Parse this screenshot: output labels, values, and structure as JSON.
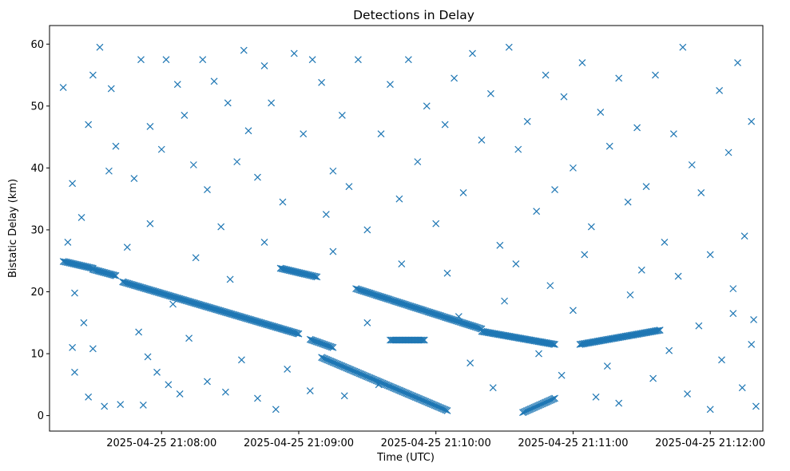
{
  "chart_data": {
    "type": "scatter",
    "title": "Detections in Delay",
    "xlabel": "Time (UTC)",
    "ylabel": "Bistatic Delay (km)",
    "marker": "x",
    "color": "#1f77b4",
    "grid": false,
    "x_ticks": [
      "2025-04-25 21:08:00",
      "2025-04-25 21:09:00",
      "2025-04-25 21:10:00",
      "2025-04-25 21:11:00",
      "2025-04-25 21:12:00"
    ],
    "y_ticks": [
      0,
      10,
      20,
      30,
      40,
      50,
      60
    ],
    "xlim": [
      "2025-04-25 21:07:11",
      "2025-04-25 21:12:23"
    ],
    "ylim": [
      -2.5,
      63
    ],
    "tracks": [
      {
        "x_start": "2025-04-25 21:07:17",
        "x_end": "2025-04-25 21:07:30",
        "y_start": 24.9,
        "y_end": 23.8
      },
      {
        "x_start": "2025-04-25 21:07:30",
        "x_end": "2025-04-25 21:07:40",
        "y_start": 23.6,
        "y_end": 22.6
      },
      {
        "x_start": "2025-04-25 21:07:43",
        "x_end": "2025-04-25 21:09:00",
        "y_start": 21.6,
        "y_end": 13.2
      },
      {
        "x_start": "2025-04-25 21:08:52",
        "x_end": "2025-04-25 21:09:08",
        "y_start": 23.8,
        "y_end": 22.4
      },
      {
        "x_start": "2025-04-25 21:09:05",
        "x_end": "2025-04-25 21:09:15",
        "y_start": 12.3,
        "y_end": 11.0
      },
      {
        "x_start": "2025-04-25 21:09:10",
        "x_end": "2025-04-25 21:10:05",
        "y_start": 9.4,
        "y_end": 0.8
      },
      {
        "x_start": "2025-04-25 21:09:25",
        "x_end": "2025-04-25 21:10:20",
        "y_start": 20.5,
        "y_end": 14.0
      },
      {
        "x_start": "2025-04-25 21:09:40",
        "x_end": "2025-04-25 21:09:55",
        "y_start": 12.2,
        "y_end": 12.2
      },
      {
        "x_start": "2025-04-25 21:10:20",
        "x_end": "2025-04-25 21:10:52",
        "y_start": 13.6,
        "y_end": 11.5
      },
      {
        "x_start": "2025-04-25 21:10:38",
        "x_end": "2025-04-25 21:10:52",
        "y_start": 0.5,
        "y_end": 2.8
      },
      {
        "x_start": "2025-04-25 21:11:03",
        "x_end": "2025-04-25 21:11:38",
        "y_start": 11.5,
        "y_end": 13.8
      }
    ],
    "points": [
      [
        "2025-04-25 21:07:17",
        53.0
      ],
      [
        "2025-04-25 21:07:19",
        28.0
      ],
      [
        "2025-04-25 21:07:21",
        37.5
      ],
      [
        "2025-04-25 21:07:25",
        32.0
      ],
      [
        "2025-04-25 21:07:28",
        47.0
      ],
      [
        "2025-04-25 21:07:30",
        55.0
      ],
      [
        "2025-04-25 21:07:33",
        59.5
      ],
      [
        "2025-04-25 21:07:38",
        52.8
      ],
      [
        "2025-04-25 21:07:40",
        43.5
      ],
      [
        "2025-04-25 21:07:37",
        39.5
      ],
      [
        "2025-04-25 21:07:22",
        19.8
      ],
      [
        "2025-04-25 21:07:26",
        15.0
      ],
      [
        "2025-04-25 21:07:21",
        11.0
      ],
      [
        "2025-04-25 21:07:22",
        7.0
      ],
      [
        "2025-04-25 21:07:30",
        10.8
      ],
      [
        "2025-04-25 21:07:28",
        3.0
      ],
      [
        "2025-04-25 21:07:35",
        1.5
      ],
      [
        "2025-04-25 21:07:42",
        1.8
      ],
      [
        "2025-04-25 21:07:52",
        1.7
      ],
      [
        "2025-04-25 21:07:50",
        13.5
      ],
      [
        "2025-04-25 21:07:54",
        9.5
      ],
      [
        "2025-04-25 21:07:58",
        7.0
      ],
      [
        "2025-04-25 21:08:03",
        5.0
      ],
      [
        "2025-04-25 21:08:08",
        3.5
      ],
      [
        "2025-04-25 21:07:48",
        38.3
      ],
      [
        "2025-04-25 21:07:51",
        57.5
      ],
      [
        "2025-04-25 21:07:55",
        46.7
      ],
      [
        "2025-04-25 21:08:00",
        43.0
      ],
      [
        "2025-04-25 21:08:02",
        57.5
      ],
      [
        "2025-04-25 21:08:07",
        53.5
      ],
      [
        "2025-04-25 21:08:10",
        48.5
      ],
      [
        "2025-04-25 21:08:14",
        40.5
      ],
      [
        "2025-04-25 21:08:18",
        57.5
      ],
      [
        "2025-04-25 21:08:20",
        36.5
      ],
      [
        "2025-04-25 21:08:23",
        54.0
      ],
      [
        "2025-04-25 21:08:26",
        30.5
      ],
      [
        "2025-04-25 21:08:29",
        50.5
      ],
      [
        "2025-04-25 21:08:33",
        41.0
      ],
      [
        "2025-04-25 21:08:36",
        59.0
      ],
      [
        "2025-04-25 21:08:38",
        46.0
      ],
      [
        "2025-04-25 21:08:42",
        38.5
      ],
      [
        "2025-04-25 21:08:45",
        56.5
      ],
      [
        "2025-04-25 21:08:48",
        50.5
      ],
      [
        "2025-04-25 21:08:53",
        34.5
      ],
      [
        "2025-04-25 21:08:58",
        58.5
      ],
      [
        "2025-04-25 21:09:02",
        45.5
      ],
      [
        "2025-04-25 21:09:06",
        57.5
      ],
      [
        "2025-04-25 21:09:10",
        53.8
      ],
      [
        "2025-04-25 21:09:12",
        32.5
      ],
      [
        "2025-04-25 21:09:15",
        39.5
      ],
      [
        "2025-04-25 21:09:19",
        48.5
      ],
      [
        "2025-04-25 21:09:22",
        37.0
      ],
      [
        "2025-04-25 21:09:26",
        57.5
      ],
      [
        "2025-04-25 21:09:30",
        30.0
      ],
      [
        "2025-04-25 21:09:36",
        45.5
      ],
      [
        "2025-04-25 21:09:40",
        53.5
      ],
      [
        "2025-04-25 21:09:44",
        35.0
      ],
      [
        "2025-04-25 21:09:48",
        57.5
      ],
      [
        "2025-04-25 21:09:52",
        41.0
      ],
      [
        "2025-04-25 21:09:56",
        50.0
      ],
      [
        "2025-04-25 21:10:00",
        31.0
      ],
      [
        "2025-04-25 21:10:04",
        47.0
      ],
      [
        "2025-04-25 21:10:08",
        54.5
      ],
      [
        "2025-04-25 21:10:12",
        36.0
      ],
      [
        "2025-04-25 21:10:16",
        58.5
      ],
      [
        "2025-04-25 21:10:20",
        44.5
      ],
      [
        "2025-04-25 21:10:24",
        52.0
      ],
      [
        "2025-04-25 21:10:28",
        27.5
      ],
      [
        "2025-04-25 21:10:32",
        59.5
      ],
      [
        "2025-04-25 21:10:36",
        43.0
      ],
      [
        "2025-04-25 21:10:40",
        47.5
      ],
      [
        "2025-04-25 21:10:44",
        33.0
      ],
      [
        "2025-04-25 21:10:48",
        55.0
      ],
      [
        "2025-04-25 21:10:52",
        36.5
      ],
      [
        "2025-04-25 21:10:56",
        51.5
      ],
      [
        "2025-04-25 21:11:00",
        40.0
      ],
      [
        "2025-04-25 21:11:04",
        57.0
      ],
      [
        "2025-04-25 21:11:08",
        30.5
      ],
      [
        "2025-04-25 21:11:12",
        49.0
      ],
      [
        "2025-04-25 21:11:16",
        43.5
      ],
      [
        "2025-04-25 21:11:20",
        54.5
      ],
      [
        "2025-04-25 21:11:24",
        34.5
      ],
      [
        "2025-04-25 21:11:28",
        46.5
      ],
      [
        "2025-04-25 21:11:32",
        37.0
      ],
      [
        "2025-04-25 21:11:36",
        55.0
      ],
      [
        "2025-04-25 21:11:40",
        28.0
      ],
      [
        "2025-04-25 21:11:44",
        45.5
      ],
      [
        "2025-04-25 21:11:48",
        59.5
      ],
      [
        "2025-04-25 21:11:52",
        40.5
      ],
      [
        "2025-04-25 21:11:56",
        36.0
      ],
      [
        "2025-04-25 21:12:00",
        26.0
      ],
      [
        "2025-04-25 21:12:04",
        52.5
      ],
      [
        "2025-04-25 21:12:08",
        42.5
      ],
      [
        "2025-04-25 21:12:12",
        57.0
      ],
      [
        "2025-04-25 21:12:15",
        29.0
      ],
      [
        "2025-04-25 21:12:18",
        47.5
      ],
      [
        "2025-04-25 21:08:05",
        18.0
      ],
      [
        "2025-04-25 21:08:12",
        12.5
      ],
      [
        "2025-04-25 21:08:20",
        5.5
      ],
      [
        "2025-04-25 21:08:28",
        3.8
      ],
      [
        "2025-04-25 21:08:35",
        9.0
      ],
      [
        "2025-04-25 21:08:42",
        2.8
      ],
      [
        "2025-04-25 21:08:50",
        1.0
      ],
      [
        "2025-04-25 21:08:55",
        7.5
      ],
      [
        "2025-04-25 21:09:05",
        4.0
      ],
      [
        "2025-04-25 21:09:20",
        3.2
      ],
      [
        "2025-04-25 21:09:30",
        15.0
      ],
      [
        "2025-04-25 21:09:35",
        5.0
      ],
      [
        "2025-04-25 21:10:10",
        16.0
      ],
      [
        "2025-04-25 21:10:15",
        8.5
      ],
      [
        "2025-04-25 21:10:25",
        4.5
      ],
      [
        "2025-04-25 21:10:30",
        18.5
      ],
      [
        "2025-04-25 21:10:45",
        10.0
      ],
      [
        "2025-04-25 21:10:55",
        6.5
      ],
      [
        "2025-04-25 21:11:00",
        17.0
      ],
      [
        "2025-04-25 21:11:10",
        3.0
      ],
      [
        "2025-04-25 21:11:15",
        8.0
      ],
      [
        "2025-04-25 21:11:20",
        2.0
      ],
      [
        "2025-04-25 21:11:25",
        19.5
      ],
      [
        "2025-04-25 21:11:35",
        6.0
      ],
      [
        "2025-04-25 21:11:42",
        10.5
      ],
      [
        "2025-04-25 21:11:50",
        3.5
      ],
      [
        "2025-04-25 21:11:55",
        14.5
      ],
      [
        "2025-04-25 21:12:00",
        1.0
      ],
      [
        "2025-04-25 21:12:05",
        9.0
      ],
      [
        "2025-04-25 21:12:10",
        16.5
      ],
      [
        "2025-04-25 21:12:14",
        4.5
      ],
      [
        "2025-04-25 21:12:18",
        11.5
      ],
      [
        "2025-04-25 21:12:20",
        1.5
      ],
      [
        "2025-04-25 21:12:19",
        15.5
      ],
      [
        "2025-04-25 21:12:10",
        20.5
      ],
      [
        "2025-04-25 21:11:46",
        22.5
      ],
      [
        "2025-04-25 21:08:15",
        25.5
      ],
      [
        "2025-04-25 21:08:30",
        22.0
      ],
      [
        "2025-04-25 21:08:45",
        28.0
      ],
      [
        "2025-04-25 21:09:15",
        26.5
      ],
      [
        "2025-04-25 21:09:45",
        24.5
      ],
      [
        "2025-04-25 21:10:05",
        23.0
      ],
      [
        "2025-04-25 21:10:35",
        24.5
      ],
      [
        "2025-04-25 21:10:50",
        21.0
      ],
      [
        "2025-04-25 21:11:05",
        26.0
      ],
      [
        "2025-04-25 21:11:30",
        23.5
      ],
      [
        "2025-04-25 21:07:45",
        27.2
      ],
      [
        "2025-04-25 21:07:55",
        31.0
      ]
    ]
  }
}
